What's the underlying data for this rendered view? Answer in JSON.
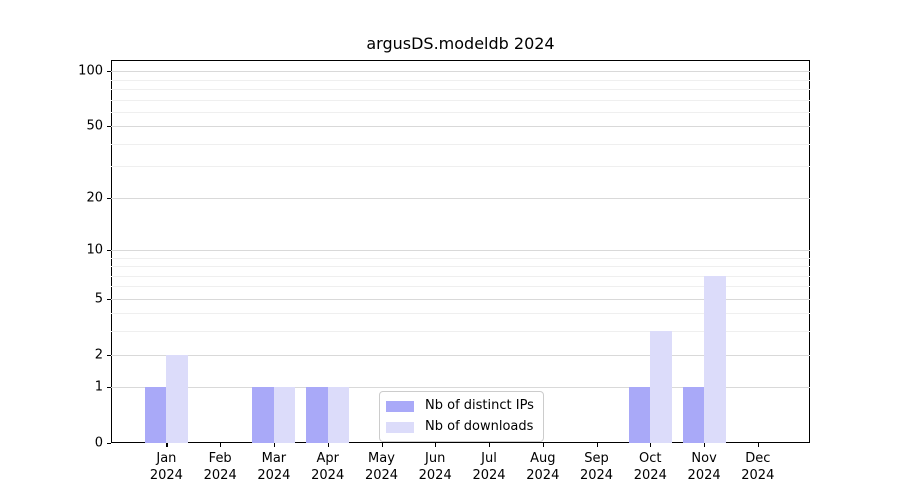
{
  "chart_data": {
    "type": "bar",
    "title": "argusDS.modeldb 2024",
    "categories": [
      "Jan",
      "Feb",
      "Mar",
      "Apr",
      "May",
      "Jun",
      "Jul",
      "Aug",
      "Sep",
      "Oct",
      "Nov",
      "Dec"
    ],
    "category_year": "2024",
    "series": [
      {
        "name": "Nb of distinct IPs",
        "color": "#a9a9f8",
        "values": [
          1,
          0,
          1,
          1,
          0,
          0,
          0,
          0,
          0,
          1,
          1,
          0
        ]
      },
      {
        "name": "Nb of downloads",
        "color": "#dcdcfa",
        "values": [
          2,
          0,
          1,
          1,
          0,
          0,
          0,
          0,
          0,
          3,
          7,
          0
        ]
      }
    ],
    "y_axis": {
      "scale": "log1p",
      "major_ticks": [
        0,
        1,
        2,
        5,
        10,
        20,
        50,
        100
      ],
      "minor_ticks": [
        3,
        4,
        6,
        7,
        8,
        9,
        30,
        40,
        60,
        70,
        80,
        90
      ],
      "max": 115
    },
    "x_axis": {
      "tick_label_lines": 2
    },
    "legend": {
      "position": "lower-center"
    },
    "grid": true,
    "colors": {
      "major_grid": "#d9d9d9",
      "minor_grid": "#efefef",
      "axis": "#000000",
      "background": "#ffffff"
    }
  }
}
